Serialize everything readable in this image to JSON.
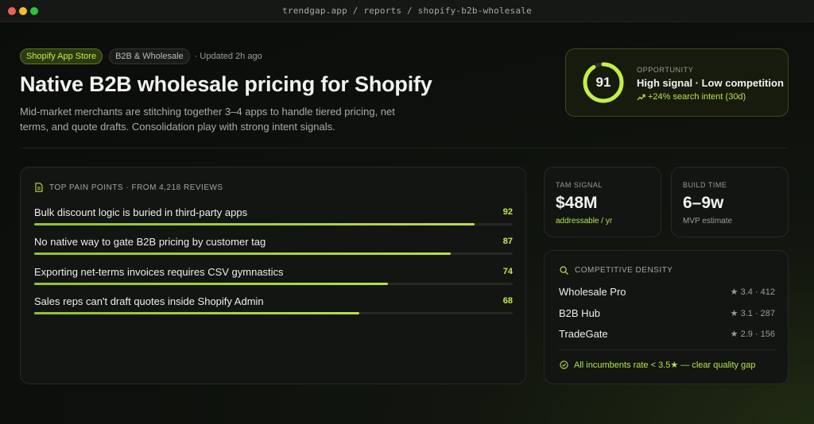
{
  "window": {
    "url": "trendgap.app / reports / shopify-b2b-wholesale"
  },
  "tags": {
    "source": "Shopify App Store",
    "category": "B2B & Wholesale",
    "updated": "· Updated 2h ago"
  },
  "title": "Native B2B wholesale pricing for Shopify",
  "description": "Mid-market merchants are stitching together 3–4 apps to handle tiered pricing, net terms, and quote drafts. Consolidation play with strong intent signals.",
  "opportunity": {
    "score": "91",
    "score_fraction": 0.91,
    "label": "OPPORTUNITY",
    "headline": "High signal · Low competition",
    "trend": "+24% search intent (30d)",
    "accent_color": "#c4ee47"
  },
  "pain_points": {
    "header": "TOP PAIN POINTS · FROM 4,218 REVIEWS",
    "items": [
      {
        "label": "Bulk discount logic is buried in third-party apps",
        "score": "92",
        "fraction": 0.92
      },
      {
        "label": "No native way to gate B2B pricing by customer tag",
        "score": "87",
        "fraction": 0.87
      },
      {
        "label": "Exporting net-terms invoices requires CSV gymnastics",
        "score": "74",
        "fraction": 0.74
      },
      {
        "label": "Sales reps can't draft quotes inside Shopify Admin",
        "score": "68",
        "fraction": 0.68
      }
    ]
  },
  "tam": {
    "label": "TAM SIGNAL",
    "value": "$48M",
    "sub": "addressable / yr"
  },
  "build": {
    "label": "BUILD TIME",
    "value": "6–9w",
    "sub": "MVP estimate"
  },
  "competition": {
    "header": "COMPETITIVE DENSITY",
    "rows": [
      {
        "name": "Wholesale Pro",
        "meta": "★ 3.4 · 412"
      },
      {
        "name": "B2B Hub",
        "meta": "★ 3.1 · 287"
      },
      {
        "name": "TradeGate",
        "meta": "★ 2.9 · 156"
      }
    ],
    "footer": "All incumbents rate < 3.5★ — clear quality gap"
  }
}
